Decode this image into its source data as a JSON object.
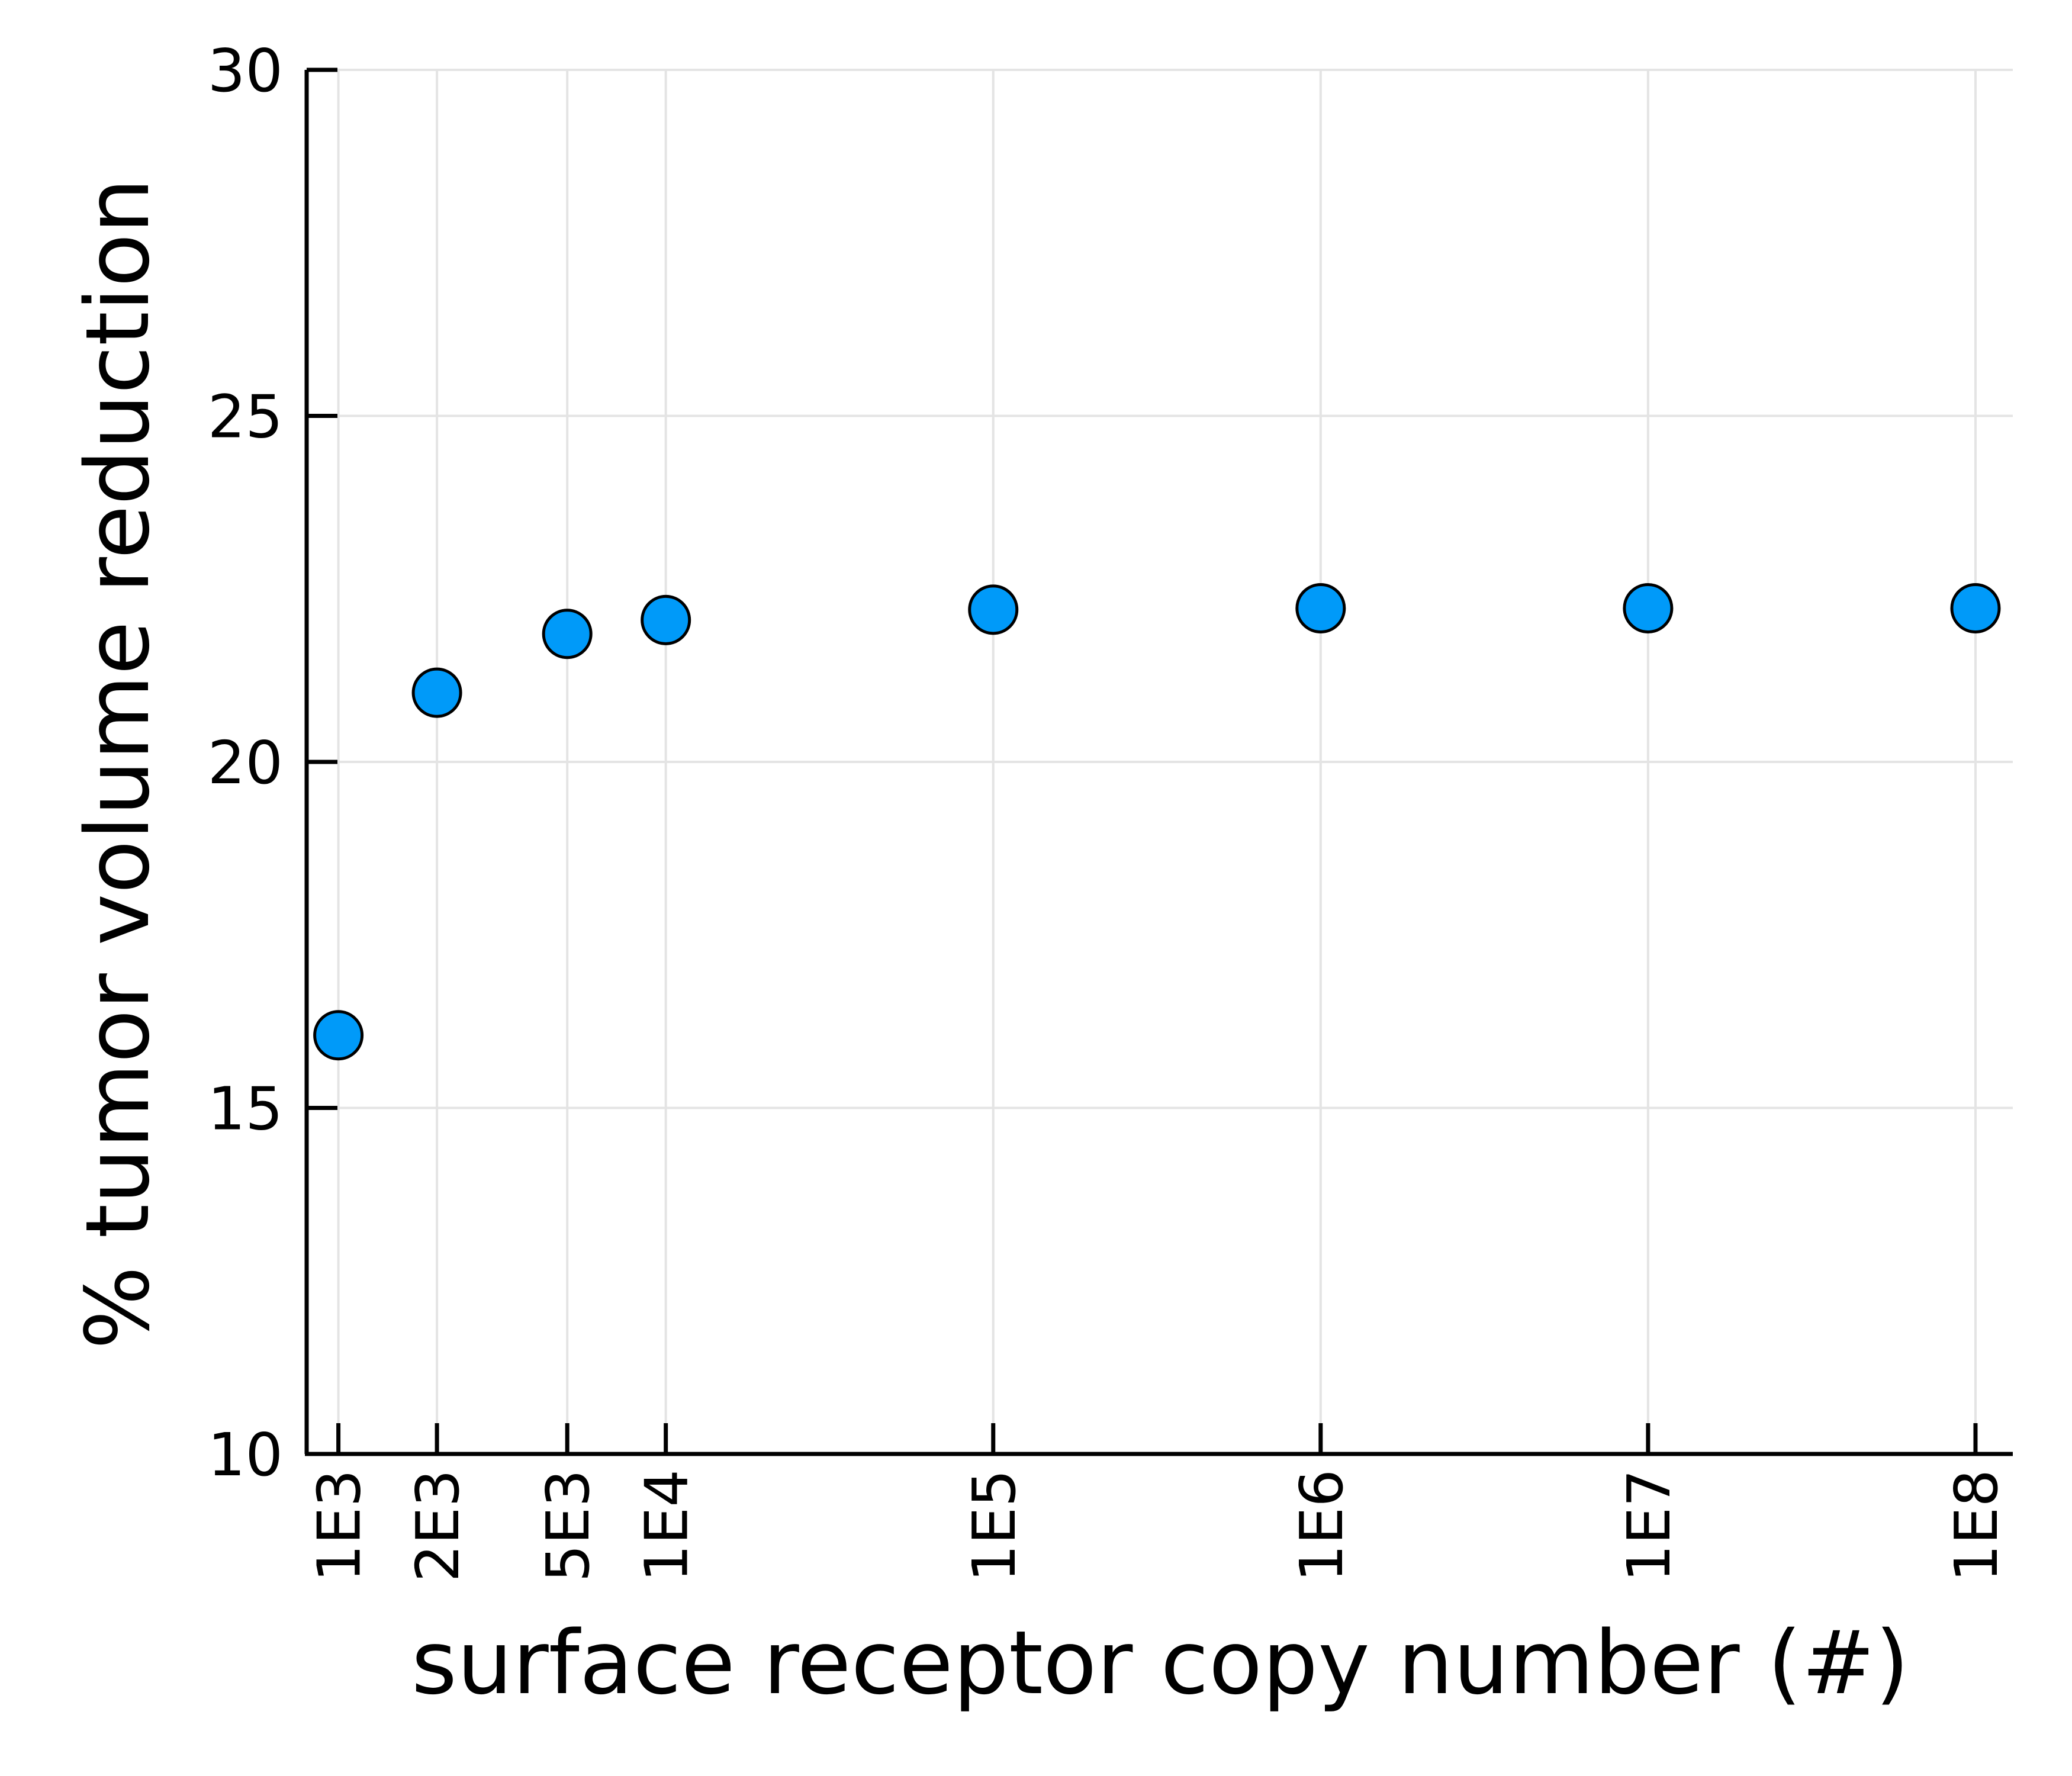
{
  "chart_data": {
    "type": "scatter",
    "xlabel": "surface receptor copy number (#)",
    "ylabel": "% tumor volume reduction",
    "x_scale": "log10",
    "xlim": [
      800,
      130000000
    ],
    "ylim": [
      10,
      30
    ],
    "grid": true,
    "legend": "none",
    "yticks": [
      {
        "value": 10,
        "label": "10"
      },
      {
        "value": 15,
        "label": "15"
      },
      {
        "value": 20,
        "label": "20"
      },
      {
        "value": 25,
        "label": "25"
      },
      {
        "value": 30,
        "label": "30"
      }
    ],
    "xticks": [
      {
        "value": 1000,
        "label": "1E3"
      },
      {
        "value": 2000,
        "label": "2E3"
      },
      {
        "value": 5000,
        "label": "5E3"
      },
      {
        "value": 10000,
        "label": "1E4"
      },
      {
        "value": 100000,
        "label": "1E5"
      },
      {
        "value": 1000000,
        "label": "1E6"
      },
      {
        "value": 10000000,
        "label": "1E7"
      },
      {
        "value": 100000000,
        "label": "1E8"
      }
    ],
    "points": [
      {
        "x": 1000,
        "y": 16.05
      },
      {
        "x": 2000,
        "y": 21.0
      },
      {
        "x": 5000,
        "y": 21.85
      },
      {
        "x": 10000,
        "y": 22.05
      },
      {
        "x": 100000,
        "y": 22.2
      },
      {
        "x": 1000000,
        "y": 22.22
      },
      {
        "x": 10000000,
        "y": 22.22
      },
      {
        "x": 100000000,
        "y": 22.22
      }
    ],
    "colors": {
      "marker_fill": "#009af9",
      "marker_edge": "#000000",
      "grid": "#e4e4e4",
      "axis": "#000000"
    }
  }
}
